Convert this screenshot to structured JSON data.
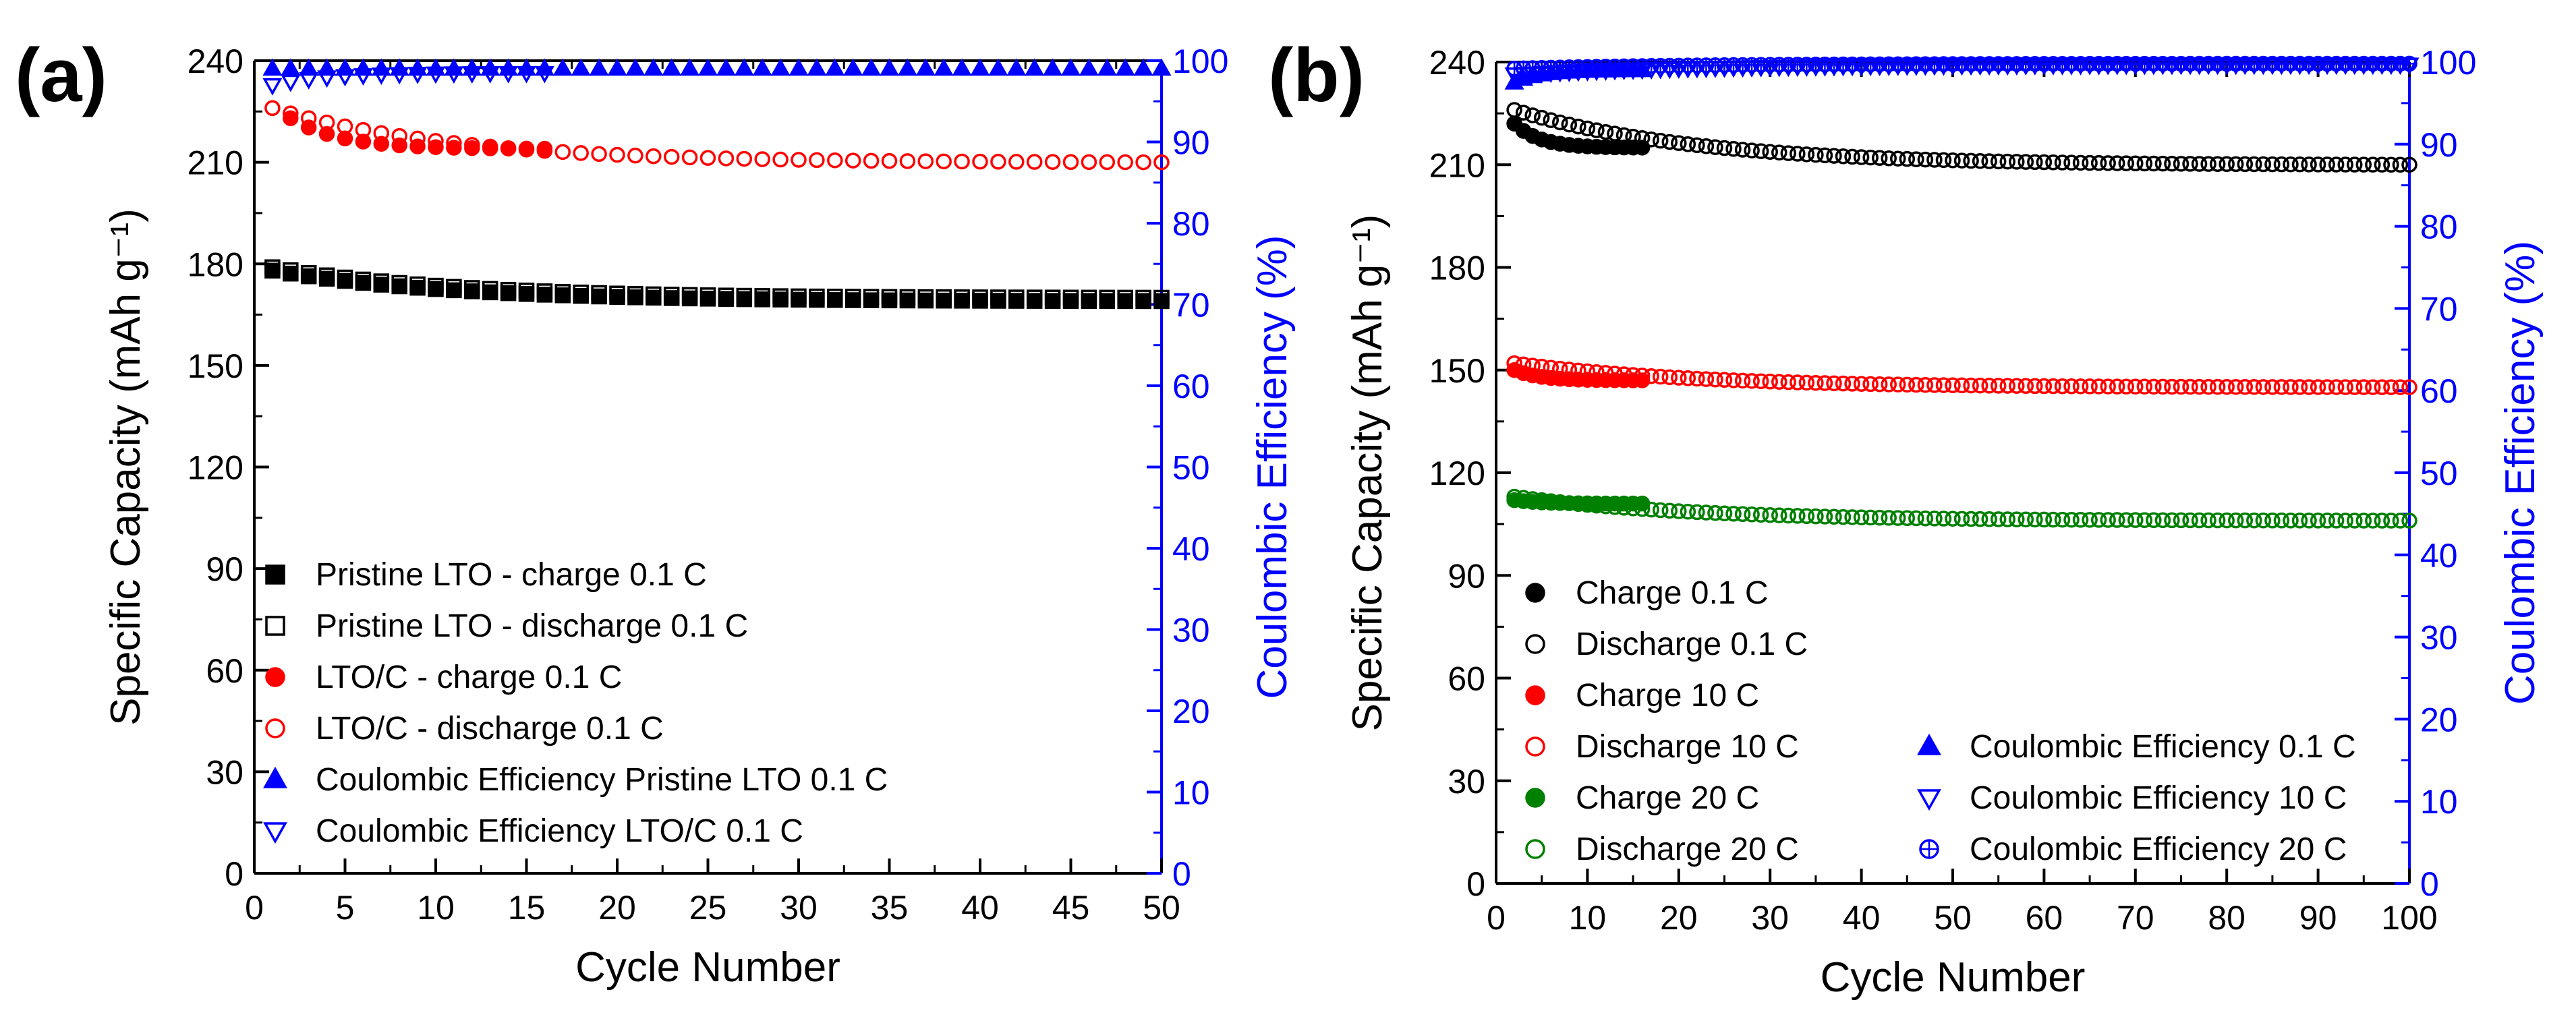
{
  "chart_data": [
    {
      "panel_label": "(a)",
      "type": "scatter",
      "xlabel": "Cycle Number",
      "ylabel": "Specific Capacity (mAh g⁻¹)",
      "y2label": "Coulombic Efficiency (%)",
      "xlim": [
        0,
        50
      ],
      "ylim": [
        0,
        240
      ],
      "y2lim": [
        0,
        100
      ],
      "xticks": [
        0,
        5,
        10,
        15,
        20,
        25,
        30,
        35,
        40,
        45,
        50
      ],
      "yticks": [
        0,
        30,
        60,
        90,
        120,
        150,
        180,
        210,
        240
      ],
      "y2ticks": [
        0,
        10,
        20,
        30,
        40,
        50,
        60,
        70,
        80,
        90,
        100
      ],
      "legend_position": "bottom-left",
      "series": [
        {
          "name": "Pristine LTO - charge 0.1 C",
          "marker": "square-filled",
          "color": "#000000",
          "axis": "left",
          "x_range": [
            1,
            50
          ],
          "start": 178,
          "end": 169
        },
        {
          "name": "Pristine LTO - discharge 0.1 C",
          "marker": "square-open",
          "color": "#000000",
          "axis": "left",
          "x_range": [
            1,
            50
          ],
          "start": 179,
          "end": 170
        },
        {
          "name": "LTO/C - charge 0.1 C",
          "marker": "circle-filled",
          "color": "#ff0000",
          "axis": "left",
          "x_range": [
            2,
            16
          ],
          "start": 223,
          "end": 214
        },
        {
          "name": "LTO/C - discharge 0.1 C",
          "marker": "circle-open",
          "color": "#ff0000",
          "axis": "left",
          "x_range": [
            1,
            50
          ],
          "start": 226,
          "end": 210
        },
        {
          "name": "Coulombic Efficiency Pristine LTO 0.1 C",
          "marker": "triangle-up-filled",
          "color": "#0000ff",
          "axis": "right",
          "x_range": [
            1,
            50
          ],
          "start": 99,
          "end": 99
        },
        {
          "name": "Coulombic Efficiency LTO/C 0.1 C",
          "marker": "triangle-down-open",
          "color": "#0000ff",
          "axis": "right",
          "x_range": [
            1,
            16
          ],
          "start": 97,
          "end": 98.5
        }
      ]
    },
    {
      "panel_label": "(b)",
      "type": "scatter",
      "xlabel": "Cycle Number",
      "ylabel": "Specific Capacity (mAh g⁻¹)",
      "y2label": "Coulombic Efficiency (%)",
      "xlim": [
        0,
        100
      ],
      "ylim": [
        0,
        240
      ],
      "y2lim": [
        0,
        100
      ],
      "xticks": [
        0,
        10,
        20,
        30,
        40,
        50,
        60,
        70,
        80,
        90,
        100
      ],
      "yticks": [
        0,
        30,
        60,
        90,
        120,
        150,
        180,
        210,
        240
      ],
      "y2ticks": [
        0,
        10,
        20,
        30,
        40,
        50,
        60,
        70,
        80,
        90,
        100
      ],
      "legend_position": "bottom",
      "series": [
        {
          "name": "Charge 0.1 C",
          "marker": "circle-filled",
          "color": "#000000",
          "axis": "left",
          "x_range": [
            2,
            16
          ],
          "start": 222,
          "end": 215
        },
        {
          "name": "Discharge 0.1 C",
          "marker": "circle-open",
          "color": "#000000",
          "axis": "left",
          "x_range": [
            2,
            100
          ],
          "start": 226,
          "end": 210
        },
        {
          "name": "Charge 10 C",
          "marker": "circle-filled",
          "color": "#ff0000",
          "axis": "left",
          "x_range": [
            2,
            16
          ],
          "start": 150,
          "end": 147
        },
        {
          "name": "Discharge 10 C",
          "marker": "circle-open",
          "color": "#ff0000",
          "axis": "left",
          "x_range": [
            2,
            100
          ],
          "start": 152,
          "end": 145
        },
        {
          "name": "Charge 20 C",
          "marker": "circle-filled",
          "color": "#008000",
          "axis": "left",
          "x_range": [
            2,
            16
          ],
          "start": 112,
          "end": 111
        },
        {
          "name": "Discharge 20 C",
          "marker": "circle-open",
          "color": "#008000",
          "axis": "left",
          "x_range": [
            2,
            100
          ],
          "start": 113,
          "end": 106
        },
        {
          "name": "Coulombic Efficiency 0.1 C",
          "marker": "triangle-up-filled",
          "color": "#0000ff",
          "axis": "right",
          "x_range": [
            2,
            16
          ],
          "start": 97.5,
          "end": 99
        },
        {
          "name": "Coulombic Efficiency 10 C",
          "marker": "triangle-down-open",
          "color": "#0000ff",
          "axis": "right",
          "x_range": [
            2,
            100
          ],
          "start": 98.5,
          "end": 99.7
        },
        {
          "name": "Coulombic Efficiency 20 C",
          "marker": "circle-cross-open",
          "color": "#0000ff",
          "axis": "right",
          "x_range": [
            2,
            100
          ],
          "start": 99.2,
          "end": 99.8
        }
      ]
    }
  ]
}
